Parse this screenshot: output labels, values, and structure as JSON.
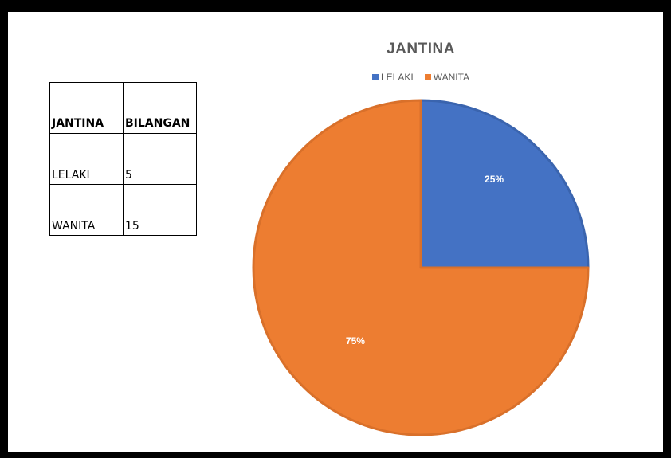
{
  "table": {
    "headers": [
      "JANTINA",
      "BILANGAN"
    ],
    "rows": [
      [
        "LELAKI",
        "5"
      ],
      [
        "WANITA",
        "15"
      ]
    ]
  },
  "chart_data": {
    "type": "pie",
    "title": "JANTINA",
    "categories": [
      "LELAKI",
      "WANITA"
    ],
    "values": [
      5,
      15
    ],
    "percent_labels": [
      "25%",
      "75%"
    ],
    "colors": [
      "#4472C4",
      "#ED7D31"
    ],
    "legend_position": "top"
  }
}
